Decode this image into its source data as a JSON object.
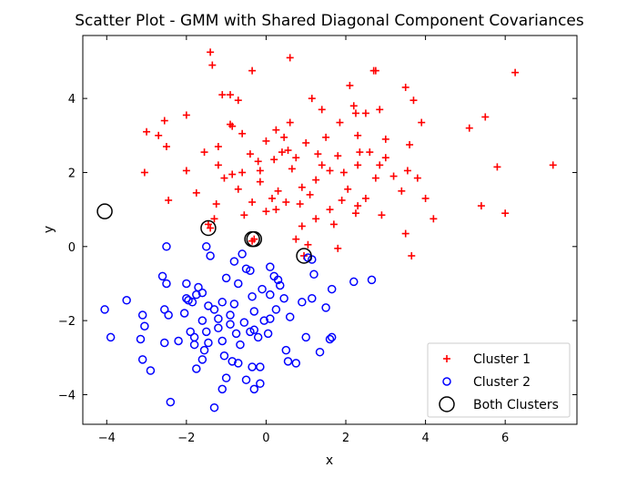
{
  "chart_data": {
    "type": "scatter",
    "title": "Scatter Plot - GMM with Shared Diagonal Component Covariances",
    "xlabel": "x",
    "ylabel": "y",
    "xlim": [
      -4.6,
      7.8
    ],
    "ylim": [
      -4.8,
      5.7
    ],
    "xticks": [
      -4,
      -2,
      0,
      2,
      4,
      6
    ],
    "yticks": [
      -4,
      -2,
      0,
      2,
      4
    ],
    "grid": false,
    "legend_position": "bottom-right",
    "colors": {
      "cluster1": "#ff0000",
      "cluster2": "#0000ff",
      "both": "#000000"
    },
    "series": [
      {
        "name": "Cluster 1",
        "marker": "plus",
        "points": [
          [
            -1.4,
            5.25
          ],
          [
            -1.35,
            4.9
          ],
          [
            -0.35,
            4.75
          ],
          [
            0.6,
            5.1
          ],
          [
            2.7,
            4.75
          ],
          [
            2.75,
            4.75
          ],
          [
            6.25,
            4.7
          ],
          [
            -1.1,
            4.1
          ],
          [
            -0.9,
            4.1
          ],
          [
            -0.7,
            3.95
          ],
          [
            1.15,
            4.0
          ],
          [
            2.1,
            4.35
          ],
          [
            3.5,
            4.3
          ],
          [
            3.7,
            3.95
          ],
          [
            -2.55,
            3.4
          ],
          [
            -2.0,
            3.55
          ],
          [
            -0.9,
            3.3
          ],
          [
            -0.85,
            3.25
          ],
          [
            0.6,
            3.35
          ],
          [
            1.4,
            3.7
          ],
          [
            2.25,
            3.6
          ],
          [
            2.5,
            3.6
          ],
          [
            2.85,
            3.7
          ],
          [
            3.9,
            3.35
          ],
          [
            5.5,
            3.5
          ],
          [
            5.1,
            3.2
          ],
          [
            -3.0,
            3.1
          ],
          [
            -2.7,
            3.0
          ],
          [
            -2.5,
            2.7
          ],
          [
            -1.55,
            2.55
          ],
          [
            -1.2,
            2.7
          ],
          [
            -0.4,
            2.5
          ],
          [
            0.0,
            2.85
          ],
          [
            0.45,
            2.95
          ],
          [
            1.0,
            2.8
          ],
          [
            1.5,
            2.95
          ],
          [
            2.3,
            3.0
          ],
          [
            2.6,
            2.55
          ],
          [
            3.0,
            2.9
          ],
          [
            3.6,
            2.75
          ],
          [
            -3.05,
            2.0
          ],
          [
            -2.0,
            2.05
          ],
          [
            -1.2,
            2.2
          ],
          [
            -0.85,
            1.95
          ],
          [
            -0.2,
            2.3
          ],
          [
            0.2,
            2.35
          ],
          [
            0.75,
            2.4
          ],
          [
            1.3,
            2.5
          ],
          [
            1.8,
            2.45
          ],
          [
            2.3,
            2.2
          ],
          [
            3.0,
            2.4
          ],
          [
            3.55,
            2.05
          ],
          [
            3.8,
            1.85
          ],
          [
            5.8,
            2.15
          ],
          [
            7.2,
            2.2
          ],
          [
            -2.45,
            1.25
          ],
          [
            -1.75,
            1.45
          ],
          [
            -1.25,
            1.15
          ],
          [
            -0.7,
            1.55
          ],
          [
            -0.35,
            1.2
          ],
          [
            0.3,
            1.5
          ],
          [
            0.9,
            1.6
          ],
          [
            1.25,
            1.8
          ],
          [
            1.9,
            1.25
          ],
          [
            2.3,
            1.1
          ],
          [
            3.4,
            1.5
          ],
          [
            4.0,
            1.3
          ],
          [
            5.4,
            1.1
          ],
          [
            -1.45,
            0.6
          ],
          [
            -1.3,
            0.75
          ],
          [
            -0.55,
            0.85
          ],
          [
            0.0,
            0.95
          ],
          [
            0.25,
            1.0
          ],
          [
            0.9,
            0.55
          ],
          [
            1.25,
            0.75
          ],
          [
            1.7,
            0.6
          ],
          [
            2.25,
            0.9
          ],
          [
            2.9,
            0.85
          ],
          [
            4.2,
            0.75
          ],
          [
            6.0,
            0.9
          ],
          [
            -0.35,
            0.15
          ],
          [
            0.75,
            0.2
          ],
          [
            1.05,
            0.05
          ],
          [
            1.8,
            -0.05
          ],
          [
            3.5,
            0.35
          ],
          [
            3.65,
            -0.25
          ],
          [
            -1.4,
            0.5
          ],
          [
            -0.3,
            0.2
          ],
          [
            0.95,
            -0.25
          ],
          [
            0.5,
            1.2
          ],
          [
            1.1,
            1.4
          ],
          [
            -0.15,
            1.75
          ],
          [
            -0.6,
            2.0
          ],
          [
            0.65,
            2.1
          ],
          [
            1.6,
            2.05
          ],
          [
            2.05,
            1.55
          ],
          [
            2.75,
            1.85
          ],
          [
            2.35,
            2.55
          ],
          [
            0.25,
            3.15
          ],
          [
            1.85,
            3.35
          ],
          [
            2.2,
            3.8
          ],
          [
            -0.6,
            3.05
          ],
          [
            0.4,
            2.55
          ],
          [
            -1.05,
            1.85
          ],
          [
            1.4,
            2.2
          ],
          [
            0.85,
            1.15
          ],
          [
            2.5,
            1.3
          ],
          [
            3.2,
            1.9
          ],
          [
            0.55,
            2.6
          ],
          [
            -0.15,
            2.05
          ],
          [
            1.95,
            2.0
          ],
          [
            2.85,
            2.2
          ],
          [
            1.6,
            1.0
          ],
          [
            0.15,
            1.3
          ]
        ]
      },
      {
        "name": "Cluster 2",
        "marker": "circle",
        "points": [
          [
            -2.5,
            0.0
          ],
          [
            -1.5,
            0.0
          ],
          [
            -1.4,
            -0.25
          ],
          [
            -0.6,
            -0.2
          ],
          [
            -0.8,
            -0.4
          ],
          [
            1.05,
            -0.3
          ],
          [
            1.15,
            -0.35
          ],
          [
            -2.6,
            -0.8
          ],
          [
            -2.5,
            -1.0
          ],
          [
            -2.0,
            -1.0
          ],
          [
            -1.7,
            -1.1
          ],
          [
            -1.6,
            -1.25
          ],
          [
            -1.0,
            -0.85
          ],
          [
            -0.5,
            -0.6
          ],
          [
            -0.4,
            -0.65
          ],
          [
            0.1,
            -0.55
          ],
          [
            0.2,
            -0.8
          ],
          [
            0.35,
            -1.05
          ],
          [
            1.2,
            -0.75
          ],
          [
            1.65,
            -1.15
          ],
          [
            2.65,
            -0.9
          ],
          [
            2.2,
            -0.95
          ],
          [
            -3.5,
            -1.45
          ],
          [
            -2.0,
            -1.4
          ],
          [
            -1.85,
            -1.5
          ],
          [
            -1.75,
            -1.3
          ],
          [
            -1.45,
            -1.6
          ],
          [
            -1.1,
            -1.5
          ],
          [
            -0.8,
            -1.55
          ],
          [
            -0.35,
            -1.35
          ],
          [
            0.1,
            -1.3
          ],
          [
            0.45,
            -1.4
          ],
          [
            0.9,
            -1.5
          ],
          [
            1.15,
            -1.4
          ],
          [
            1.5,
            -1.65
          ],
          [
            -4.05,
            -1.7
          ],
          [
            -3.1,
            -1.85
          ],
          [
            -2.55,
            -1.7
          ],
          [
            -2.45,
            -1.85
          ],
          [
            -2.05,
            -1.8
          ],
          [
            -1.6,
            -2.0
          ],
          [
            -1.2,
            -1.95
          ],
          [
            -0.9,
            -1.85
          ],
          [
            -0.55,
            -2.05
          ],
          [
            -0.3,
            -1.75
          ],
          [
            0.1,
            -1.95
          ],
          [
            0.6,
            -1.9
          ],
          [
            -3.05,
            -2.15
          ],
          [
            -1.9,
            -2.3
          ],
          [
            -1.8,
            -2.45
          ],
          [
            -1.5,
            -2.3
          ],
          [
            -1.2,
            -2.2
          ],
          [
            -0.9,
            -2.1
          ],
          [
            -0.75,
            -2.35
          ],
          [
            -0.4,
            -2.3
          ],
          [
            -0.2,
            -2.45
          ],
          [
            0.05,
            -2.35
          ],
          [
            -0.3,
            -2.25
          ],
          [
            1.0,
            -2.45
          ],
          [
            1.6,
            -2.5
          ],
          [
            1.65,
            -2.45
          ],
          [
            -3.9,
            -2.45
          ],
          [
            -3.15,
            -2.5
          ],
          [
            -2.55,
            -2.6
          ],
          [
            -1.8,
            -2.65
          ],
          [
            -1.45,
            -2.6
          ],
          [
            -1.1,
            -2.55
          ],
          [
            -0.65,
            -2.65
          ],
          [
            0.5,
            -2.8
          ],
          [
            1.35,
            -2.85
          ],
          [
            -3.1,
            -3.05
          ],
          [
            -2.9,
            -3.35
          ],
          [
            -1.6,
            -3.05
          ],
          [
            -1.75,
            -3.3
          ],
          [
            -0.85,
            -3.1
          ],
          [
            -0.7,
            -3.15
          ],
          [
            -0.35,
            -3.25
          ],
          [
            -0.15,
            -3.25
          ],
          [
            0.55,
            -3.1
          ],
          [
            0.75,
            -3.15
          ],
          [
            -1.0,
            -3.55
          ],
          [
            -0.5,
            -3.6
          ],
          [
            -0.15,
            -3.7
          ],
          [
            -1.1,
            -3.85
          ],
          [
            -0.3,
            -3.85
          ],
          [
            -2.4,
            -4.2
          ],
          [
            -1.3,
            -4.35
          ],
          [
            -1.95,
            -1.45
          ],
          [
            -1.3,
            -1.7
          ],
          [
            -0.1,
            -1.15
          ],
          [
            -0.7,
            -1.0
          ],
          [
            0.3,
            -0.9
          ],
          [
            -1.55,
            -2.8
          ],
          [
            -0.05,
            -2.0
          ],
          [
            0.25,
            -1.7
          ],
          [
            -2.2,
            -2.55
          ],
          [
            -1.05,
            -2.95
          ]
        ]
      },
      {
        "name": "Both Clusters",
        "marker": "big-circle",
        "points": [
          [
            -4.05,
            0.95
          ],
          [
            -1.45,
            0.5
          ],
          [
            -0.35,
            0.2
          ],
          [
            -0.3,
            0.2
          ],
          [
            0.95,
            -0.25
          ]
        ]
      }
    ]
  }
}
